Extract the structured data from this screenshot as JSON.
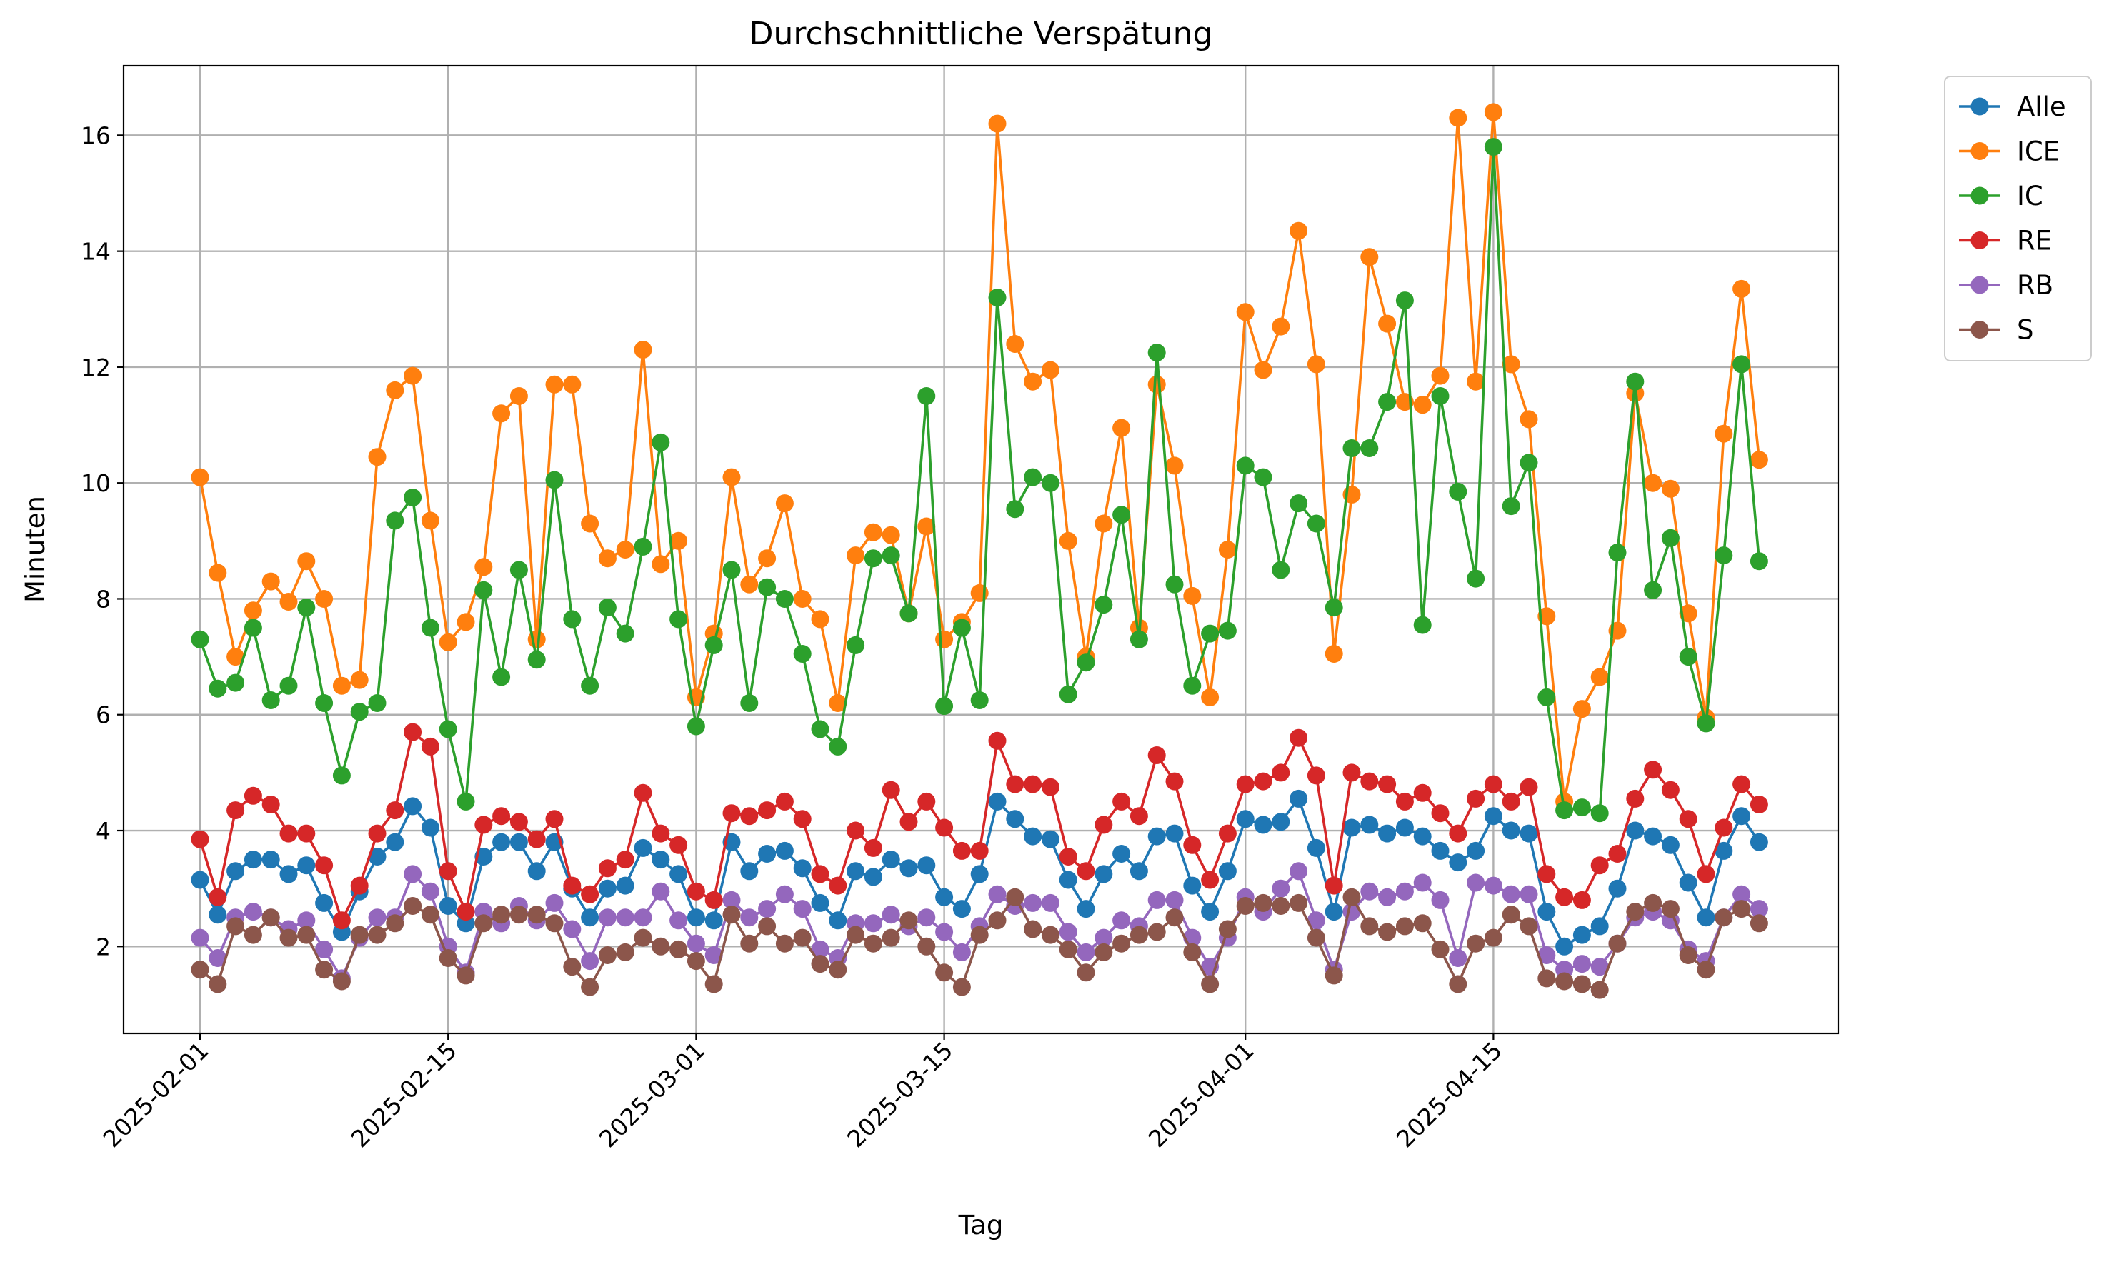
{
  "chart_data": {
    "type": "line",
    "title": "Durchschnittliche Verspätung",
    "xlabel": "Tag",
    "ylabel": "Minuten",
    "grid": true,
    "legend_position": "outside-top-right",
    "x_start": "2025-02-01",
    "x_tick_labels": [
      "2025-02-01",
      "2025-02-15",
      "2025-03-01",
      "2025-03-15",
      "2025-04-01",
      "2025-04-15"
    ],
    "y_ticks": [
      2,
      4,
      6,
      8,
      10,
      12,
      14,
      16
    ],
    "ylim": [
      0.5,
      17.2
    ],
    "series": [
      {
        "name": "Alle",
        "color": "#1f77b4",
        "values": [
          3.15,
          2.55,
          3.3,
          3.5,
          3.5,
          3.25,
          3.4,
          2.75,
          2.25,
          2.95,
          3.55,
          3.8,
          4.42,
          4.05,
          2.7,
          2.4,
          3.55,
          3.8,
          3.8,
          3.3,
          3.8,
          3.0,
          2.5,
          3.0,
          3.05,
          3.7,
          3.5,
          3.25,
          2.5,
          2.45,
          3.8,
          3.3,
          3.6,
          3.65,
          3.35,
          2.75,
          2.45,
          3.3,
          3.2,
          3.5,
          3.35,
          3.4,
          2.85,
          2.65,
          3.25,
          4.5,
          4.2,
          3.9,
          3.85,
          3.15,
          2.65,
          3.25,
          3.6,
          3.3,
          3.9,
          3.95,
          3.05,
          2.6,
          3.3,
          4.2,
          4.1,
          4.15,
          4.55,
          3.7,
          2.6,
          4.05,
          4.1,
          3.95,
          4.05,
          3.9,
          3.65,
          3.45,
          3.65,
          4.25,
          4.0,
          3.95,
          2.6,
          2.0,
          2.2,
          2.35,
          3.0,
          4.0,
          3.9,
          3.75,
          3.1,
          2.5,
          3.65,
          4.25,
          3.8
        ]
      },
      {
        "name": "ICE",
        "color": "#ff7f0e",
        "values": [
          10.1,
          8.45,
          7.0,
          7.8,
          8.3,
          7.95,
          8.65,
          8.0,
          6.5,
          6.6,
          10.45,
          11.6,
          11.85,
          9.35,
          7.25,
          7.6,
          8.55,
          11.2,
          11.5,
          7.3,
          11.7,
          11.7,
          9.3,
          8.7,
          8.85,
          12.3,
          8.6,
          9.0,
          6.3,
          7.4,
          10.1,
          8.25,
          8.7,
          9.65,
          8.0,
          7.65,
          6.2,
          8.75,
          9.15,
          9.1,
          7.75,
          9.25,
          7.3,
          7.6,
          8.1,
          16.2,
          12.4,
          11.75,
          11.95,
          9.0,
          7.0,
          9.3,
          10.95,
          7.5,
          11.7,
          10.3,
          8.05,
          6.3,
          8.85,
          12.95,
          11.95,
          12.7,
          14.35,
          12.05,
          7.05,
          9.8,
          13.9,
          12.75,
          11.4,
          11.35,
          11.85,
          16.3,
          11.75,
          16.4,
          12.05,
          11.1,
          7.7,
          4.5,
          6.1,
          6.65,
          7.45,
          11.55,
          10.0,
          9.9,
          7.75,
          5.95,
          10.85,
          13.35,
          10.4
        ]
      },
      {
        "name": "IC",
        "color": "#2ca02c",
        "values": [
          7.3,
          6.45,
          6.55,
          7.5,
          6.25,
          6.5,
          7.85,
          6.2,
          4.95,
          6.05,
          6.2,
          9.35,
          9.75,
          7.5,
          5.75,
          4.5,
          8.15,
          6.65,
          8.5,
          6.95,
          10.05,
          7.65,
          6.5,
          7.85,
          7.4,
          8.9,
          10.7,
          7.65,
          5.8,
          7.2,
          8.5,
          6.2,
          8.2,
          8.0,
          7.05,
          5.75,
          5.45,
          7.2,
          8.7,
          8.75,
          7.75,
          11.5,
          6.15,
          7.5,
          6.25,
          13.2,
          9.55,
          10.1,
          10.0,
          6.35,
          6.9,
          7.9,
          9.45,
          7.3,
          12.25,
          8.25,
          6.5,
          7.4,
          7.45,
          10.3,
          10.1,
          8.5,
          9.65,
          9.3,
          7.85,
          10.6,
          10.6,
          11.4,
          13.15,
          7.55,
          11.5,
          9.85,
          8.35,
          15.8,
          9.6,
          10.35,
          6.3,
          4.35,
          4.4,
          4.3,
          8.8,
          11.75,
          8.15,
          9.05,
          7.0,
          5.85,
          8.75,
          12.05,
          8.65
        ]
      },
      {
        "name": "RE",
        "color": "#d62728",
        "values": [
          3.85,
          2.85,
          4.35,
          4.6,
          4.45,
          3.95,
          3.95,
          3.4,
          2.45,
          3.05,
          3.95,
          4.35,
          5.7,
          5.45,
          3.3,
          2.6,
          4.1,
          4.25,
          4.15,
          3.85,
          4.2,
          3.05,
          2.9,
          3.35,
          3.5,
          4.65,
          3.95,
          3.75,
          2.95,
          2.8,
          4.3,
          4.25,
          4.35,
          4.5,
          4.2,
          3.25,
          3.05,
          4.0,
          3.7,
          4.7,
          4.15,
          4.5,
          4.05,
          3.65,
          3.65,
          5.55,
          4.8,
          4.8,
          4.75,
          3.55,
          3.3,
          4.1,
          4.5,
          4.25,
          5.3,
          4.85,
          3.75,
          3.15,
          3.95,
          4.8,
          4.85,
          5.0,
          5.6,
          4.95,
          3.05,
          5.0,
          4.85,
          4.8,
          4.5,
          4.65,
          4.3,
          3.95,
          4.55,
          4.8,
          4.5,
          4.75,
          3.25,
          2.85,
          2.8,
          3.4,
          3.6,
          4.55,
          5.05,
          4.7,
          4.2,
          3.25,
          4.05,
          4.8,
          4.45
        ]
      },
      {
        "name": "RB",
        "color": "#9467bd",
        "values": [
          2.15,
          1.8,
          2.5,
          2.6,
          2.5,
          2.3,
          2.45,
          1.95,
          1.45,
          2.15,
          2.5,
          2.5,
          3.25,
          2.95,
          2.0,
          1.55,
          2.6,
          2.4,
          2.7,
          2.45,
          2.75,
          2.3,
          1.75,
          2.5,
          2.5,
          2.5,
          2.95,
          2.45,
          2.05,
          1.85,
          2.8,
          2.5,
          2.65,
          2.9,
          2.65,
          1.95,
          1.8,
          2.4,
          2.4,
          2.55,
          2.35,
          2.5,
          2.25,
          1.9,
          2.35,
          2.9,
          2.7,
          2.75,
          2.75,
          2.25,
          1.9,
          2.15,
          2.45,
          2.35,
          2.8,
          2.8,
          2.15,
          1.65,
          2.15,
          2.85,
          2.6,
          3.0,
          3.3,
          2.45,
          1.6,
          2.6,
          2.95,
          2.85,
          2.95,
          3.1,
          2.8,
          1.8,
          3.1,
          3.05,
          2.9,
          2.9,
          1.85,
          1.6,
          1.7,
          1.65,
          2.05,
          2.5,
          2.6,
          2.45,
          1.95,
          1.75,
          2.5,
          2.9,
          2.65
        ]
      },
      {
        "name": "S",
        "color": "#8c564b",
        "values": [
          1.6,
          1.35,
          2.35,
          2.2,
          2.5,
          2.15,
          2.2,
          1.6,
          1.4,
          2.2,
          2.2,
          2.4,
          2.7,
          2.55,
          1.8,
          1.5,
          2.4,
          2.55,
          2.55,
          2.55,
          2.4,
          1.65,
          1.3,
          1.85,
          1.9,
          2.15,
          2.0,
          1.95,
          1.75,
          1.35,
          2.55,
          2.05,
          2.35,
          2.05,
          2.15,
          1.7,
          1.6,
          2.2,
          2.05,
          2.15,
          2.45,
          2.0,
          1.55,
          1.3,
          2.2,
          2.45,
          2.85,
          2.3,
          2.2,
          1.95,
          1.55,
          1.9,
          2.05,
          2.2,
          2.25,
          2.5,
          1.9,
          1.35,
          2.3,
          2.7,
          2.75,
          2.7,
          2.75,
          2.15,
          1.5,
          2.85,
          2.35,
          2.25,
          2.35,
          2.4,
          1.95,
          1.35,
          2.05,
          2.15,
          2.55,
          2.35,
          1.45,
          1.4,
          1.35,
          1.25,
          2.05,
          2.6,
          2.75,
          2.65,
          1.85,
          1.6,
          2.5,
          2.65,
          2.4
        ]
      }
    ]
  }
}
